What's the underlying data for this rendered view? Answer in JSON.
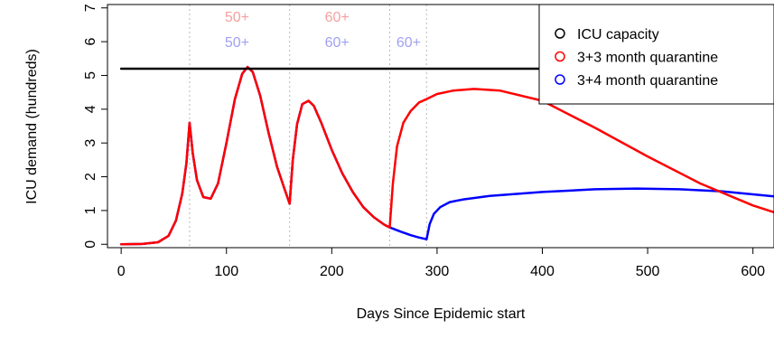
{
  "chart_data": {
    "type": "line",
    "title": "",
    "xlabel": "Days Since Epidemic start",
    "ylabel": "ICU demand (hundreds)",
    "xlim": [
      -13,
      620
    ],
    "ylim": [
      -0.1,
      7.1
    ],
    "xticks": [
      0,
      100,
      200,
      300,
      400,
      500,
      600
    ],
    "yticks": [
      0,
      1,
      2,
      3,
      4,
      5,
      6,
      7
    ],
    "grid": false,
    "legend_position": "top-right",
    "icu_capacity": 5.2,
    "vlines": [
      65,
      160,
      255,
      290
    ],
    "phase_labels": [
      {
        "text": "50+",
        "x": 110,
        "y": 6.75,
        "color": "#f4a0a0"
      },
      {
        "text": "60+",
        "x": 205,
        "y": 6.75,
        "color": "#f4a0a0"
      },
      {
        "text": "50+",
        "x": 110,
        "y": 6.0,
        "color": "#a0a0f4"
      },
      {
        "text": "60+",
        "x": 205,
        "y": 6.0,
        "color": "#a0a0f4"
      },
      {
        "text": "60+",
        "x": 273,
        "y": 6.0,
        "color": "#a0a0f4"
      }
    ],
    "series": [
      {
        "name": "ICU capacity",
        "color": "#000000",
        "x": [
          0,
          590
        ],
        "y": [
          5.2,
          5.2
        ]
      },
      {
        "name": "3+3 month quarantine",
        "color": "#ff0000",
        "x": [
          0,
          20,
          35,
          45,
          52,
          58,
          62,
          65,
          68,
          72,
          78,
          85,
          92,
          100,
          108,
          115,
          120,
          125,
          132,
          140,
          148,
          155,
          160,
          163,
          167,
          172,
          178,
          183,
          190,
          200,
          210,
          220,
          230,
          240,
          250,
          255,
          258,
          262,
          268,
          275,
          283,
          290,
          300,
          315,
          335,
          360,
          400,
          450,
          500,
          550,
          600,
          620
        ],
        "y": [
          0.0,
          0.01,
          0.06,
          0.25,
          0.7,
          1.5,
          2.4,
          3.6,
          2.7,
          1.9,
          1.4,
          1.35,
          1.8,
          3.0,
          4.3,
          5.05,
          5.25,
          5.1,
          4.4,
          3.3,
          2.3,
          1.65,
          1.2,
          2.5,
          3.55,
          4.15,
          4.25,
          4.1,
          3.6,
          2.8,
          2.1,
          1.55,
          1.1,
          0.8,
          0.58,
          0.5,
          1.8,
          2.9,
          3.6,
          3.95,
          4.2,
          4.3,
          4.45,
          4.55,
          4.6,
          4.55,
          4.25,
          3.45,
          2.6,
          1.8,
          1.15,
          0.95
        ]
      },
      {
        "name": "3+4 month quarantine",
        "color": "#0000ff",
        "x": [
          0,
          20,
          35,
          45,
          52,
          58,
          62,
          65,
          68,
          72,
          78,
          85,
          92,
          100,
          108,
          115,
          120,
          125,
          132,
          140,
          148,
          155,
          160,
          163,
          167,
          172,
          178,
          183,
          190,
          200,
          210,
          220,
          230,
          240,
          250,
          255,
          265,
          275,
          283,
          290,
          293,
          297,
          303,
          312,
          325,
          350,
          400,
          450,
          490,
          530,
          570,
          620
        ],
        "y": [
          0.0,
          0.01,
          0.06,
          0.25,
          0.7,
          1.5,
          2.4,
          3.6,
          2.7,
          1.9,
          1.4,
          1.35,
          1.8,
          3.0,
          4.3,
          5.05,
          5.25,
          5.1,
          4.4,
          3.3,
          2.3,
          1.65,
          1.2,
          2.5,
          3.55,
          4.15,
          4.25,
          4.1,
          3.6,
          2.8,
          2.1,
          1.55,
          1.1,
          0.8,
          0.58,
          0.5,
          0.38,
          0.27,
          0.2,
          0.15,
          0.6,
          0.9,
          1.1,
          1.25,
          1.33,
          1.43,
          1.55,
          1.63,
          1.65,
          1.63,
          1.57,
          1.42
        ]
      }
    ]
  }
}
